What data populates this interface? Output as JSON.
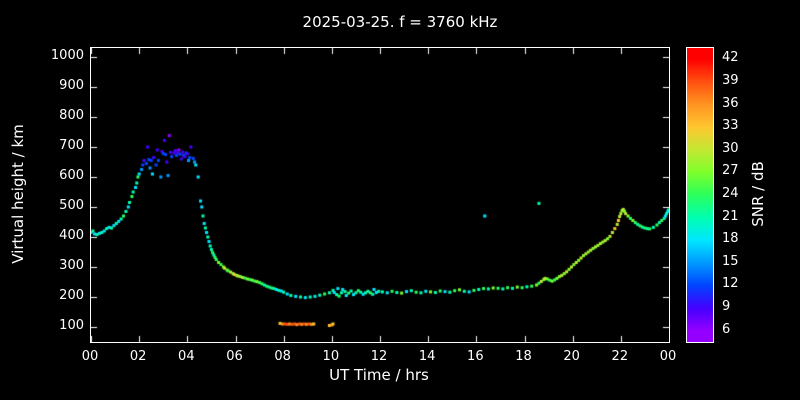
{
  "title": "2025-03-25. f = 3760 kHz",
  "colors": {
    "background": "#000000",
    "foreground": "#ffffff"
  },
  "chart_data": {
    "type": "scatter",
    "title": "2025-03-25. f = 3760 kHz",
    "xlabel": "UT Time / hrs",
    "ylabel": "Virtual height / km",
    "cblabel": "SNR / dB",
    "xlim": [
      0,
      24
    ],
    "ylim": [
      50,
      1030
    ],
    "grid": false,
    "xticks": [
      "00",
      "02",
      "04",
      "06",
      "08",
      "10",
      "12",
      "14",
      "16",
      "18",
      "20",
      "22",
      "00"
    ],
    "xtick_values": [
      0,
      2,
      4,
      6,
      8,
      10,
      12,
      14,
      16,
      18,
      20,
      22,
      24
    ],
    "yticks": [
      "100",
      "200",
      "300",
      "400",
      "500",
      "600",
      "700",
      "800",
      "900",
      "1000"
    ],
    "ytick_values": [
      100,
      200,
      300,
      400,
      500,
      600,
      700,
      800,
      900,
      1000
    ],
    "colorbar": {
      "ticks": [
        6,
        9,
        12,
        15,
        18,
        21,
        24,
        27,
        30,
        33,
        36,
        39,
        42
      ],
      "range": [
        4.5,
        43.5
      ],
      "position": "right"
    },
    "palette": {
      "6": "#9400ff",
      "9": "#4400ff",
      "12": "#0044ff",
      "15": "#0099ff",
      "18": "#00e6ff",
      "21": "#00ffb0",
      "24": "#2aff5c",
      "27": "#7dff2a",
      "30": "#c3e833",
      "33": "#ffc630",
      "36": "#ff9420",
      "39": "#ff5010",
      "42": "#ff0000"
    },
    "points": [
      [
        0.0,
        415,
        18
      ],
      [
        0.08,
        420,
        21
      ],
      [
        0.15,
        410,
        18
      ],
      [
        0.25,
        408,
        21
      ],
      [
        0.35,
        412,
        18
      ],
      [
        0.45,
        415,
        21
      ],
      [
        0.55,
        420,
        18
      ],
      [
        0.65,
        428,
        21
      ],
      [
        0.75,
        432,
        18
      ],
      [
        0.85,
        430,
        21
      ],
      [
        0.95,
        438,
        18
      ],
      [
        1.05,
        445,
        21
      ],
      [
        1.15,
        452,
        18
      ],
      [
        1.25,
        460,
        21
      ],
      [
        1.35,
        470,
        24
      ],
      [
        1.45,
        485,
        21
      ],
      [
        1.55,
        500,
        18
      ],
      [
        1.6,
        515,
        21
      ],
      [
        1.7,
        535,
        24
      ],
      [
        1.75,
        550,
        21
      ],
      [
        1.85,
        565,
        18
      ],
      [
        1.9,
        580,
        21
      ],
      [
        1.95,
        600,
        24
      ],
      [
        2.0,
        610,
        18
      ],
      [
        2.1,
        625,
        15
      ],
      [
        2.15,
        640,
        12
      ],
      [
        2.2,
        655,
        9
      ],
      [
        2.3,
        645,
        12
      ],
      [
        2.35,
        700,
        9
      ],
      [
        2.4,
        658,
        12
      ],
      [
        2.45,
        630,
        15
      ],
      [
        2.5,
        655,
        12
      ],
      [
        2.55,
        610,
        18
      ],
      [
        2.6,
        665,
        9
      ],
      [
        2.7,
        640,
        12
      ],
      [
        2.75,
        690,
        9
      ],
      [
        2.8,
        655,
        12
      ],
      [
        2.9,
        600,
        15
      ],
      [
        2.95,
        685,
        9
      ],
      [
        3.0,
        678,
        12
      ],
      [
        3.05,
        722,
        9
      ],
      [
        3.1,
        675,
        12
      ],
      [
        3.15,
        650,
        9
      ],
      [
        3.2,
        605,
        15
      ],
      [
        3.25,
        738,
        6
      ],
      [
        3.3,
        682,
        9
      ],
      [
        3.35,
        668,
        12
      ],
      [
        3.45,
        680,
        9
      ],
      [
        3.5,
        688,
        9
      ],
      [
        3.55,
        672,
        12
      ],
      [
        3.6,
        680,
        9
      ],
      [
        3.65,
        690,
        6
      ],
      [
        3.7,
        676,
        12
      ],
      [
        3.75,
        660,
        9
      ],
      [
        3.8,
        683,
        9
      ],
      [
        3.85,
        672,
        12
      ],
      [
        3.9,
        668,
        9
      ],
      [
        3.95,
        680,
        12
      ],
      [
        4.0,
        678,
        9
      ],
      [
        4.05,
        655,
        15
      ],
      [
        4.1,
        665,
        12
      ],
      [
        4.15,
        700,
        9
      ],
      [
        4.25,
        662,
        12
      ],
      [
        4.3,
        650,
        15
      ],
      [
        4.35,
        640,
        18
      ],
      [
        4.45,
        600,
        18
      ],
      [
        4.55,
        520,
        18
      ],
      [
        4.6,
        500,
        18
      ],
      [
        4.65,
        470,
        21
      ],
      [
        4.7,
        445,
        18
      ],
      [
        4.75,
        430,
        21
      ],
      [
        4.8,
        415,
        18
      ],
      [
        4.85,
        400,
        21
      ],
      [
        4.9,
        385,
        18
      ],
      [
        4.95,
        370,
        21
      ],
      [
        5.0,
        358,
        21
      ],
      [
        5.05,
        348,
        24
      ],
      [
        5.1,
        340,
        21
      ],
      [
        5.15,
        332,
        24
      ],
      [
        5.2,
        325,
        24
      ],
      [
        5.3,
        315,
        27
      ],
      [
        5.4,
        308,
        24
      ],
      [
        5.5,
        300,
        27
      ],
      [
        5.55,
        296,
        30
      ],
      [
        5.65,
        290,
        27
      ],
      [
        5.7,
        287,
        24
      ],
      [
        5.8,
        283,
        30
      ],
      [
        5.9,
        278,
        27
      ],
      [
        5.95,
        275,
        33
      ],
      [
        6.05,
        272,
        27
      ],
      [
        6.1,
        270,
        30
      ],
      [
        6.2,
        268,
        27
      ],
      [
        6.3,
        265,
        30
      ],
      [
        6.4,
        263,
        24
      ],
      [
        6.5,
        260,
        27
      ],
      [
        6.6,
        258,
        24
      ],
      [
        6.7,
        256,
        27
      ],
      [
        6.8,
        253,
        24
      ],
      [
        6.9,
        251,
        27
      ],
      [
        7.0,
        248,
        24
      ],
      [
        7.1,
        244,
        24
      ],
      [
        7.2,
        240,
        21
      ],
      [
        7.3,
        236,
        24
      ],
      [
        7.4,
        233,
        21
      ],
      [
        7.5,
        230,
        24
      ],
      [
        7.6,
        228,
        21
      ],
      [
        7.7,
        225,
        18
      ],
      [
        7.8,
        222,
        21
      ],
      [
        7.9,
        220,
        18
      ],
      [
        8.0,
        216,
        21
      ],
      [
        8.15,
        210,
        18
      ],
      [
        8.3,
        205,
        21
      ],
      [
        8.5,
        202,
        18
      ],
      [
        8.7,
        200,
        21
      ],
      [
        8.9,
        198,
        18
      ],
      [
        9.1,
        200,
        21
      ],
      [
        9.3,
        202,
        18
      ],
      [
        9.5,
        206,
        21
      ],
      [
        9.7,
        210,
        24
      ],
      [
        9.9,
        214,
        21
      ],
      [
        7.85,
        112,
        33
      ],
      [
        7.95,
        110,
        36
      ],
      [
        8.05,
        110,
        39
      ],
      [
        8.15,
        109,
        39
      ],
      [
        8.25,
        110,
        36
      ],
      [
        8.35,
        109,
        39
      ],
      [
        8.45,
        110,
        39
      ],
      [
        8.55,
        108,
        36
      ],
      [
        8.65,
        110,
        39
      ],
      [
        8.75,
        109,
        36
      ],
      [
        8.85,
        110,
        39
      ],
      [
        8.95,
        109,
        36
      ],
      [
        9.05,
        110,
        39
      ],
      [
        9.15,
        109,
        36
      ],
      [
        9.25,
        110,
        33
      ],
      [
        9.9,
        105,
        33
      ],
      [
        10.0,
        107,
        36
      ],
      [
        10.05,
        110,
        33
      ],
      [
        10.05,
        222,
        21
      ],
      [
        10.1,
        215,
        18
      ],
      [
        10.2,
        208,
        21
      ],
      [
        10.25,
        228,
        18
      ],
      [
        10.3,
        203,
        24
      ],
      [
        10.4,
        214,
        21
      ],
      [
        10.45,
        225,
        18
      ],
      [
        10.55,
        218,
        21
      ],
      [
        10.6,
        205,
        18
      ],
      [
        10.7,
        213,
        24
      ],
      [
        10.8,
        220,
        21
      ],
      [
        10.9,
        208,
        18
      ],
      [
        11.0,
        214,
        21
      ],
      [
        11.1,
        221,
        24
      ],
      [
        11.2,
        216,
        21
      ],
      [
        11.3,
        209,
        18
      ],
      [
        11.4,
        214,
        21
      ],
      [
        11.5,
        219,
        21
      ],
      [
        11.6,
        214,
        24
      ],
      [
        11.7,
        209,
        21
      ],
      [
        11.75,
        225,
        18
      ],
      [
        11.85,
        215,
        18
      ],
      [
        11.95,
        219,
        21
      ],
      [
        12.1,
        217,
        21
      ],
      [
        12.3,
        214,
        18
      ],
      [
        12.5,
        219,
        24
      ],
      [
        12.7,
        215,
        21
      ],
      [
        12.9,
        213,
        27
      ],
      [
        13.1,
        218,
        18
      ],
      [
        13.3,
        221,
        21
      ],
      [
        13.5,
        216,
        24
      ],
      [
        13.7,
        214,
        21
      ],
      [
        13.9,
        219,
        18
      ],
      [
        14.1,
        217,
        27
      ],
      [
        14.3,
        215,
        21
      ],
      [
        14.5,
        220,
        24
      ],
      [
        14.7,
        218,
        18
      ],
      [
        14.9,
        216,
        21
      ],
      [
        15.1,
        221,
        24
      ],
      [
        15.3,
        224,
        27
      ],
      [
        15.5,
        219,
        21
      ],
      [
        15.7,
        217,
        18
      ],
      [
        15.9,
        222,
        24
      ],
      [
        16.1,
        225,
        21
      ],
      [
        16.3,
        228,
        24
      ],
      [
        16.5,
        227,
        21
      ],
      [
        16.7,
        230,
        27
      ],
      [
        16.9,
        229,
        24
      ],
      [
        17.1,
        227,
        21
      ],
      [
        17.3,
        231,
        24
      ],
      [
        17.5,
        229,
        21
      ],
      [
        17.7,
        233,
        27
      ],
      [
        17.9,
        231,
        24
      ],
      [
        18.1,
        234,
        21
      ],
      [
        18.3,
        236,
        24
      ],
      [
        16.35,
        470,
        18
      ],
      [
        18.6,
        512,
        21
      ],
      [
        18.5,
        240,
        27
      ],
      [
        18.6,
        246,
        24
      ],
      [
        18.7,
        252,
        30
      ],
      [
        18.8,
        258,
        27
      ],
      [
        18.85,
        262,
        30
      ],
      [
        18.95,
        260,
        27
      ],
      [
        19.05,
        256,
        24
      ],
      [
        19.15,
        253,
        27
      ],
      [
        19.25,
        257,
        24
      ],
      [
        19.35,
        262,
        27
      ],
      [
        19.45,
        268,
        27
      ],
      [
        19.55,
        272,
        30
      ],
      [
        19.65,
        278,
        27
      ],
      [
        19.75,
        284,
        30
      ],
      [
        19.85,
        292,
        27
      ],
      [
        19.95,
        300,
        30
      ],
      [
        20.05,
        308,
        27
      ],
      [
        20.15,
        315,
        30
      ],
      [
        20.25,
        322,
        27
      ],
      [
        20.35,
        330,
        30
      ],
      [
        20.45,
        338,
        27
      ],
      [
        20.55,
        344,
        30
      ],
      [
        20.65,
        350,
        27
      ],
      [
        20.75,
        356,
        30
      ],
      [
        20.85,
        362,
        27
      ],
      [
        20.95,
        367,
        30
      ],
      [
        21.05,
        372,
        27
      ],
      [
        21.15,
        378,
        30
      ],
      [
        21.25,
        383,
        27
      ],
      [
        21.35,
        388,
        30
      ],
      [
        21.45,
        394,
        27
      ],
      [
        21.55,
        402,
        30
      ],
      [
        21.65,
        415,
        30
      ],
      [
        21.75,
        428,
        33
      ],
      [
        21.85,
        442,
        30
      ],
      [
        21.9,
        455,
        33
      ],
      [
        21.95,
        468,
        30
      ],
      [
        22.0,
        478,
        30
      ],
      [
        22.05,
        488,
        27
      ],
      [
        22.1,
        492,
        30
      ],
      [
        22.15,
        486,
        27
      ],
      [
        22.2,
        478,
        30
      ],
      [
        22.3,
        470,
        27
      ],
      [
        22.4,
        462,
        24
      ],
      [
        22.5,
        455,
        27
      ],
      [
        22.6,
        448,
        24
      ],
      [
        22.7,
        442,
        21
      ],
      [
        22.8,
        437,
        24
      ],
      [
        22.9,
        433,
        21
      ],
      [
        23.0,
        430,
        24
      ],
      [
        23.1,
        428,
        21
      ],
      [
        23.2,
        427,
        24
      ],
      [
        23.35,
        432,
        21
      ],
      [
        23.5,
        440,
        24
      ],
      [
        23.6,
        448,
        21
      ],
      [
        23.7,
        455,
        24
      ],
      [
        23.8,
        462,
        21
      ],
      [
        23.85,
        470,
        18
      ],
      [
        23.9,
        478,
        21
      ],
      [
        23.95,
        485,
        18
      ],
      [
        23.98,
        490,
        21
      ]
    ]
  }
}
